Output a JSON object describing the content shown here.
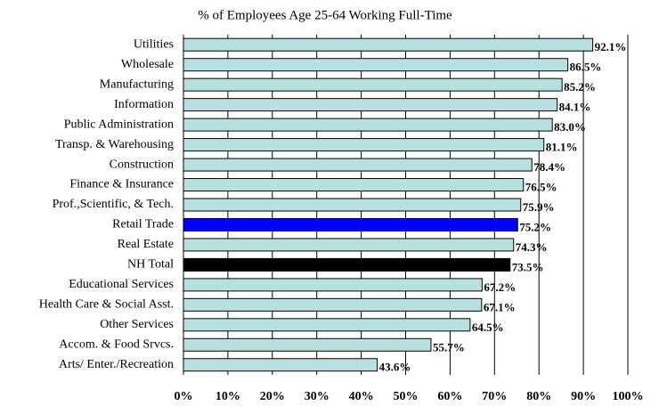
{
  "chart_data": {
    "type": "bar",
    "orientation": "horizontal",
    "title": "% of Employees Age 25-64 Working Full-Time",
    "categories": [
      "Utilities",
      "Wholesale",
      "Manufacturing",
      "Information",
      "Public Administration",
      "Transp. & Warehousing",
      "Construction",
      "Finance & Insurance",
      "Prof.,Scientific, & Tech.",
      "Retail Trade",
      "Real Estate",
      "NH Total",
      "Educational Services",
      "Health Care & Social Asst.",
      "Other Services",
      "Accom. & Food Srvcs.",
      "Arts/ Enter./Recreation"
    ],
    "values": [
      92.1,
      86.5,
      85.2,
      84.1,
      83.0,
      81.1,
      78.4,
      76.5,
      75.9,
      75.2,
      74.3,
      73.5,
      67.2,
      67.1,
      64.5,
      55.7,
      43.6
    ],
    "value_labels": [
      "92.1%",
      "86.5%",
      "85.2%",
      "84.1%",
      "83.0%",
      "81.1%",
      "78.4%",
      "76.5%",
      "75.9%",
      "75.2%",
      "74.3%",
      "73.5%",
      "67.2%",
      "67.1%",
      "64.5%",
      "55.7%",
      "43.6%"
    ],
    "colors": [
      "#b8e0e0",
      "#b8e0e0",
      "#b8e0e0",
      "#b8e0e0",
      "#b8e0e0",
      "#b8e0e0",
      "#b8e0e0",
      "#b8e0e0",
      "#b8e0e0",
      "#0000ff",
      "#b8e0e0",
      "#000000",
      "#b8e0e0",
      "#b8e0e0",
      "#b8e0e0",
      "#b8e0e0",
      "#b8e0e0"
    ],
    "xlim": [
      0,
      100
    ],
    "xticks": [
      {
        "value": 0,
        "label": "0%"
      },
      {
        "value": 10,
        "label": "10%"
      },
      {
        "value": 20,
        "label": "20%"
      },
      {
        "value": 30,
        "label": "30%"
      },
      {
        "value": 40,
        "label": "40%"
      },
      {
        "value": 50,
        "label": "50%"
      },
      {
        "value": 60,
        "label": "60%"
      },
      {
        "value": 70,
        "label": "70%"
      },
      {
        "value": 80,
        "label": "80%"
      },
      {
        "value": 90,
        "label": "90%"
      },
      {
        "value": 100,
        "label": "100%"
      }
    ],
    "grid": true
  }
}
